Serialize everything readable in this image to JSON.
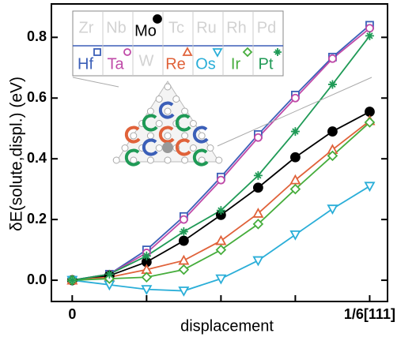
{
  "chart_data": {
    "type": "line",
    "xlabel": "displacement",
    "ylabel": "δE(solute,displ.) (eV)",
    "x": [
      0,
      0.125,
      0.25,
      0.375,
      0.5,
      0.625,
      0.75,
      0.875,
      1
    ],
    "xlim": [
      -0.07,
      1.06
    ],
    "ylim": [
      -0.07,
      0.91
    ],
    "xticks": [
      0,
      {
        "value": 1,
        "label": "1/6[111]"
      }
    ],
    "xminorticks": [
      0.25,
      0.5,
      0.75
    ],
    "yticks": [
      {
        "value": 0,
        "label": "0.0"
      },
      0.2,
      0.4,
      0.6,
      0.8
    ],
    "inset_elements": [
      "Zr",
      "Nb",
      "Tc",
      "Ru",
      "Rh",
      "Pd",
      "W"
    ],
    "series": [
      {
        "name": "Hf",
        "color": "#3b5fb8",
        "marker": "square",
        "values": [
          0,
          0.02,
          0.1,
          0.21,
          0.34,
          0.48,
          0.61,
          0.735,
          0.84
        ]
      },
      {
        "name": "Ta",
        "color": "#c04aa8",
        "marker": "circle",
        "values": [
          0,
          0.02,
          0.09,
          0.2,
          0.33,
          0.47,
          0.6,
          0.73,
          0.83
        ]
      },
      {
        "name": "Mo",
        "color": "#000000",
        "marker": "filled-circle",
        "values": [
          0,
          0.015,
          0.06,
          0.13,
          0.215,
          0.305,
          0.405,
          0.49,
          0.555
        ]
      },
      {
        "name": "Re",
        "color": "#e0623a",
        "marker": "triangle",
        "values": [
          0,
          0.01,
          0.035,
          0.065,
          0.13,
          0.22,
          0.33,
          0.43,
          0.525
        ]
      },
      {
        "name": "Os",
        "color": "#2aaed8",
        "marker": "triangle-down",
        "values": [
          0,
          -0.015,
          -0.03,
          -0.035,
          0.005,
          0.065,
          0.15,
          0.235,
          0.31
        ]
      },
      {
        "name": "Ir",
        "color": "#46ad3c",
        "marker": "diamond",
        "values": [
          0,
          0.005,
          0.01,
          0.035,
          0.1,
          0.185,
          0.3,
          0.41,
          0.52
        ]
      },
      {
        "name": "Pt",
        "color": "#1f9a56",
        "marker": "plus",
        "values": [
          0,
          0.02,
          0.08,
          0.16,
          0.23,
          0.345,
          0.49,
          0.645,
          0.805
        ]
      }
    ]
  }
}
